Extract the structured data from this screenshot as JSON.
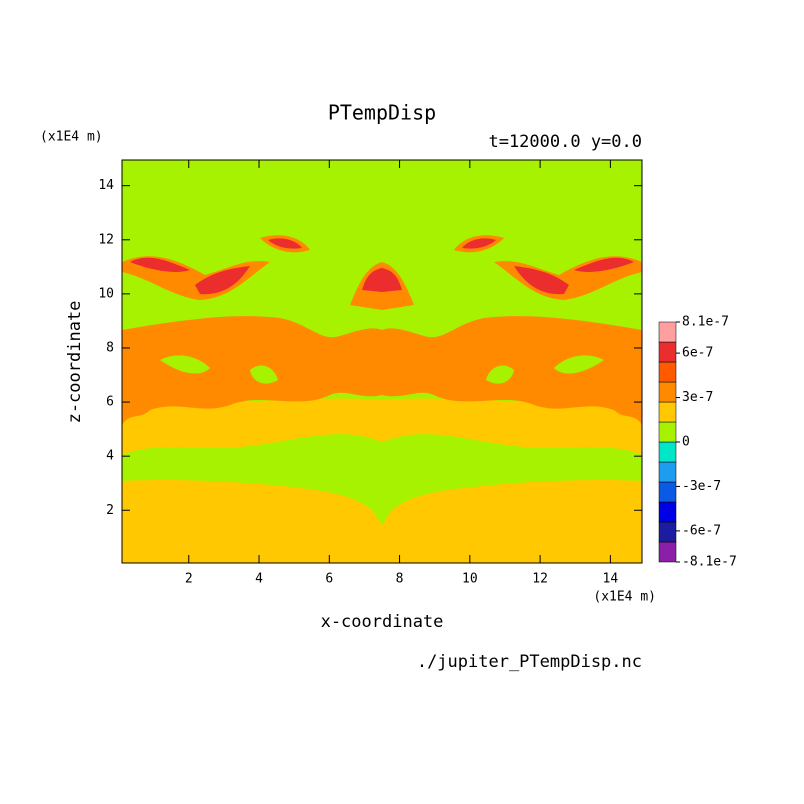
{
  "chart_data": {
    "type": "contour",
    "title": "PTempDisp",
    "subtitle": "t=12000.0 y=0.0",
    "x_label": "x-coordinate",
    "y_label": "z-coordinate",
    "x_unit": "(x1E4 m)",
    "y_unit": "(x1E4 m)",
    "source": "./jupiter_PTempDisp.nc",
    "xlim": [
      0.1,
      14.9
    ],
    "ylim": [
      0.05,
      14.95
    ],
    "xticks": [
      2,
      4,
      6,
      8,
      10,
      12,
      14
    ],
    "yticks": [
      2,
      4,
      6,
      8,
      10,
      12,
      14
    ],
    "colorbar": {
      "lim": [
        -8.1e-07,
        8.1e-07
      ],
      "ticks": [
        -8.1e-07,
        -6e-07,
        -3e-07,
        0,
        3e-07,
        6e-07,
        8.1e-07
      ],
      "colors": [
        "#8c1fa8",
        "#1c1ca0",
        "#0000e6",
        "#0a5ae6",
        "#1e9cf0",
        "#00e6c8",
        "#a6f200",
        "#ffc800",
        "#ff8a00",
        "#ff5a00",
        "#ec2d2d",
        "#ffa0a0"
      ]
    }
  }
}
